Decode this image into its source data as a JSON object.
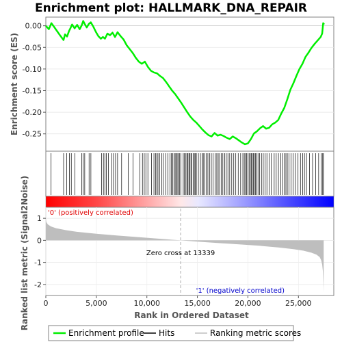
{
  "chart_data": {
    "type": "line",
    "title": "Enrichment plot: HALLMARK_DNA_REPAIR",
    "top_panel": {
      "ylabel": "Enrichment score (ES)",
      "ylim": [
        -0.29,
        0.02
      ],
      "yticks": [
        "0.00",
        "-0.05",
        "-0.10",
        "-0.15",
        "-0.20",
        "-0.25"
      ],
      "ytick_values": [
        0.0,
        -0.05,
        -0.1,
        -0.15,
        -0.2,
        -0.25
      ],
      "series": [
        {
          "name": "Enrichment profile",
          "color": "#00ee00",
          "x": [
            0,
            300,
            550,
            800,
            1100,
            1400,
            1750,
            1900,
            2100,
            2300,
            2450,
            2600,
            2850,
            3100,
            3350,
            3550,
            3700,
            3850,
            4050,
            4250,
            4450,
            4700,
            4950,
            5200,
            5450,
            5650,
            5850,
            6100,
            6350,
            6600,
            6850,
            7100,
            7400,
            7700,
            8000,
            8300,
            8600,
            8900,
            9200,
            9500,
            9800,
            10100,
            10400,
            10700,
            11000,
            11300,
            11600,
            11900,
            12200,
            12500,
            12800,
            13100,
            13400,
            13700,
            14000,
            14300,
            14600,
            14900,
            15200,
            15500,
            15800,
            16100,
            16400,
            16700,
            17000,
            17300,
            17600,
            17900,
            18200,
            18500,
            18800,
            19100,
            19400,
            19700,
            20000,
            20300,
            20600,
            20900,
            21200,
            21500,
            21800,
            22100,
            22400,
            22700,
            23000,
            23300,
            23600,
            23900,
            24200,
            24500,
            24800,
            25100,
            25400,
            25700,
            26000,
            26300,
            26600,
            26900,
            27200,
            27350,
            27450,
            27550
          ],
          "values": [
            0.0,
            -0.008,
            0.006,
            -0.002,
            -0.012,
            -0.022,
            -0.033,
            -0.02,
            -0.025,
            -0.012,
            -0.005,
            0.003,
            -0.006,
            0.002,
            -0.008,
            0.001,
            0.011,
            0.004,
            -0.004,
            0.004,
            0.008,
            -0.002,
            -0.014,
            -0.024,
            -0.03,
            -0.026,
            -0.03,
            -0.018,
            -0.022,
            -0.016,
            -0.026,
            -0.015,
            -0.024,
            -0.032,
            -0.045,
            -0.054,
            -0.063,
            -0.074,
            -0.083,
            -0.088,
            -0.083,
            -0.095,
            -0.104,
            -0.108,
            -0.11,
            -0.116,
            -0.121,
            -0.13,
            -0.14,
            -0.15,
            -0.158,
            -0.168,
            -0.178,
            -0.189,
            -0.2,
            -0.21,
            -0.218,
            -0.224,
            -0.232,
            -0.24,
            -0.247,
            -0.253,
            -0.256,
            -0.248,
            -0.254,
            -0.252,
            -0.255,
            -0.259,
            -0.262,
            -0.256,
            -0.26,
            -0.265,
            -0.27,
            -0.274,
            -0.272,
            -0.262,
            -0.249,
            -0.244,
            -0.237,
            -0.232,
            -0.238,
            -0.236,
            -0.228,
            -0.224,
            -0.218,
            -0.203,
            -0.19,
            -0.17,
            -0.148,
            -0.133,
            -0.116,
            -0.1,
            -0.088,
            -0.072,
            -0.062,
            -0.051,
            -0.042,
            -0.034,
            -0.026,
            -0.018,
            0.006,
            0.003
          ]
        }
      ]
    },
    "hits_panel": {
      "series_name": "Hits",
      "hit_ranks": [
        520,
        1760,
        2060,
        2340,
        2520,
        2880,
        3560,
        3700,
        3850,
        4280,
        4460,
        5520,
        5700,
        5840,
        6000,
        6200,
        6540,
        6700,
        6900,
        7100,
        7500,
        8150,
        8620,
        9300,
        9560,
        9740,
        9900,
        10100,
        10460,
        10700,
        10860,
        10980,
        11100,
        11260,
        11480,
        11620,
        11860,
        12080,
        12300,
        12420,
        12560,
        12680,
        12800,
        12900,
        13000,
        13100,
        13220,
        13380,
        13600,
        13720,
        13860,
        13960,
        14060,
        14160,
        14260,
        14360,
        14460,
        14580,
        14700,
        14800,
        14900,
        15100,
        15300,
        15460,
        15580,
        15720,
        15880,
        16040,
        16200,
        16380,
        16540,
        16760,
        16920,
        17060,
        17200,
        17360,
        17520,
        17700,
        17860,
        18020,
        18200,
        18400,
        18600,
        18800,
        19040,
        19280,
        19500,
        19640,
        19760,
        19880,
        20000,
        20120,
        20240,
        20340,
        20440,
        20540,
        20640,
        20760,
        20880,
        21000,
        21160,
        21340,
        21520,
        21700,
        21880,
        22100,
        22320,
        22600,
        22800,
        23020,
        23260,
        23440,
        23600,
        23760,
        23900,
        24060,
        24260,
        24480,
        24700,
        24960,
        25200,
        25420,
        25600,
        25800,
        26100,
        26400,
        26700,
        27000,
        27250,
        27400,
        27480
      ]
    },
    "metric_panel": {
      "ylabel": "Ranked list metric (Signal2Noise)",
      "ylim": [
        -2.5,
        1.5
      ],
      "yticks": [
        "1",
        "0",
        "-1",
        "-2"
      ],
      "ytick_values": [
        1,
        0,
        -1,
        -2
      ],
      "xlabel": "Rank in Ordered Dataset",
      "xlim": [
        0,
        28500
      ],
      "xticks": [
        "0",
        "5,000",
        "10,000",
        "15,000",
        "20,000",
        "25,000"
      ],
      "xtick_values": [
        0,
        5000,
        10000,
        15000,
        20000,
        25000
      ],
      "zero_cross": 13339,
      "zero_cross_label": "Zero cross at 13339",
      "positive_label": "'0' (positively correlated)",
      "negative_label": "'1' (negatively correlated)",
      "positive_label_color": "#e00000",
      "negative_label_color": "#0000cc",
      "metric_x": [
        0,
        60,
        200,
        500,
        1000,
        2000,
        3000,
        5000,
        7000,
        9000,
        11000,
        13339,
        15000,
        17000,
        19000,
        21000,
        23000,
        24500,
        25500,
        26300,
        26800,
        27100,
        27250,
        27350,
        27420,
        27470,
        27500
      ],
      "metric_values": [
        0.95,
        0.82,
        0.72,
        0.63,
        0.55,
        0.46,
        0.39,
        0.3,
        0.22,
        0.15,
        0.08,
        0.0,
        -0.06,
        -0.12,
        -0.18,
        -0.24,
        -0.32,
        -0.4,
        -0.47,
        -0.56,
        -0.65,
        -0.76,
        -0.9,
        -1.1,
        -1.4,
        -1.9,
        -2.35
      ],
      "fill_color": "#bebebe"
    },
    "legend": {
      "placement": "bottom",
      "items": [
        {
          "label": "Enrichment profile",
          "color": "#00ee00",
          "kind": "line"
        },
        {
          "label": "Hits",
          "color": "#000000",
          "kind": "line"
        },
        {
          "label": "Ranking metric scores",
          "color": "#bebebe",
          "kind": "line"
        }
      ]
    }
  }
}
